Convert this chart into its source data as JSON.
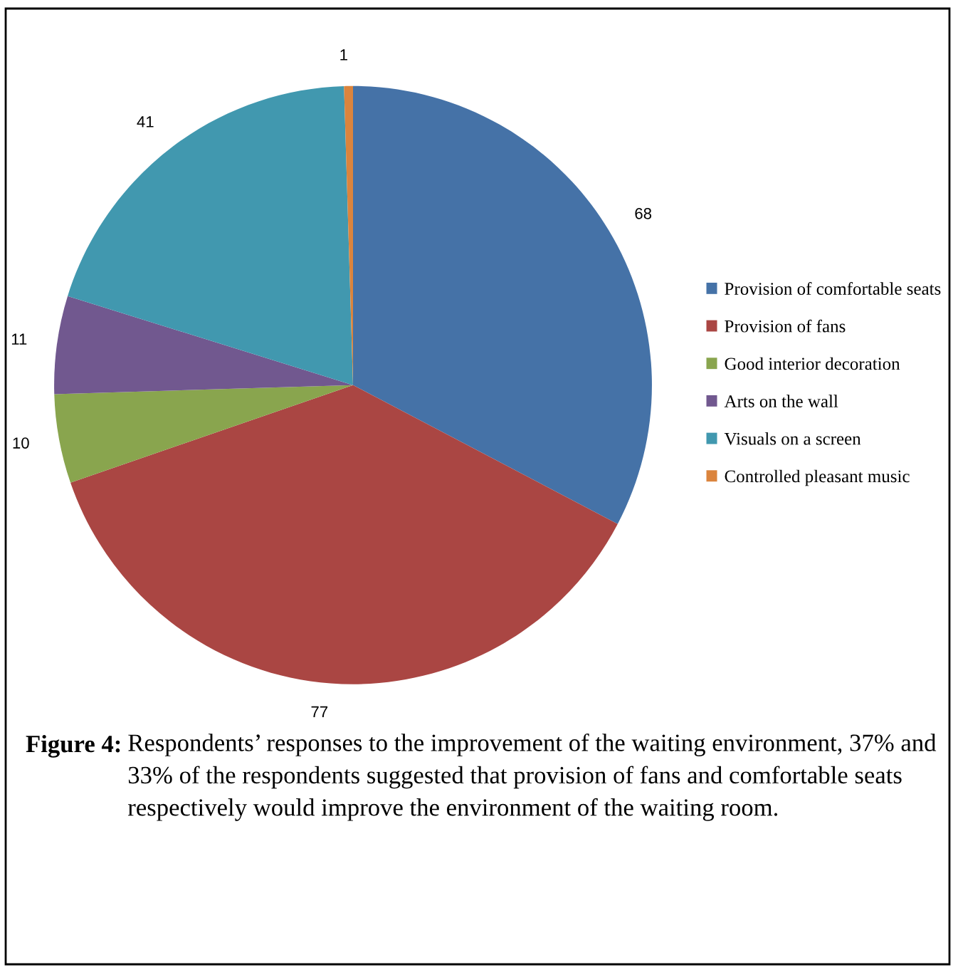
{
  "chart_data": {
    "type": "pie",
    "categories": [
      "Provision of comfortable seats",
      "Provision of fans",
      "Good interior decoration",
      "Arts on the wall",
      "Visuals on a screen",
      "Controlled pleasant music"
    ],
    "values": [
      68,
      77,
      10,
      11,
      41,
      1
    ],
    "colors": [
      "#4572a7",
      "#aa4643",
      "#89a54e",
      "#71588f",
      "#4198af",
      "#db843d"
    ],
    "data_labels": true,
    "legend": "right",
    "annotations": [
      "Figure 4:",
      "Respondents’ responses to the improvement of the waiting environment, 37% and 33% of the respondents suggested that provision of fans and comfortable seats respectively would improve the environment of the waiting room."
    ]
  }
}
